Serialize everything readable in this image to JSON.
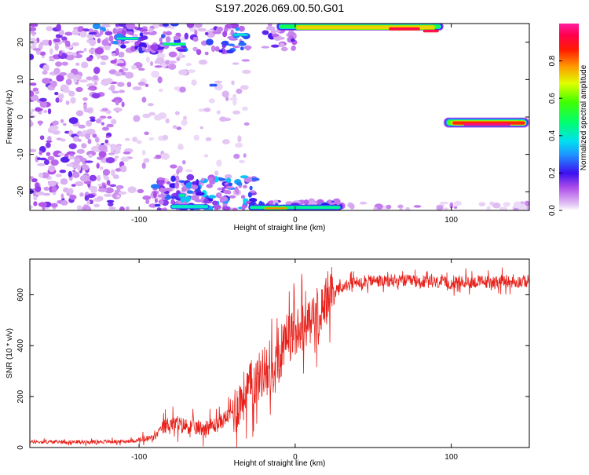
{
  "title": "S197.2026.069.00.50.G01",
  "colors": {
    "snr_line": "#e8201a",
    "axis": "#000000"
  },
  "chart_data": [
    {
      "type": "heatmap",
      "xlabel": "Height of straight line (km)",
      "ylabel": "Frequency (Hz)",
      "xlim": [
        -170,
        150
      ],
      "ylim": [
        -25,
        25
      ],
      "xticks": [
        {
          "value": -100,
          "label": "-100"
        },
        {
          "value": 0,
          "label": "0"
        },
        {
          "value": 100,
          "label": "100"
        }
      ],
      "yticks": [
        {
          "value": -20,
          "label": "-20"
        },
        {
          "value": -10,
          "label": "-10"
        },
        {
          "value": 0,
          "label": "0"
        },
        {
          "value": 10,
          "label": "10"
        },
        {
          "value": 20,
          "label": "20"
        }
      ],
      "colorbar": {
        "label": "Normalized spectral amplitude",
        "range": [
          0,
          1
        ],
        "ticks": [
          {
            "value": 0.0,
            "label": "0.0"
          },
          {
            "value": 0.2,
            "label": "0.2"
          },
          {
            "value": 0.4,
            "label": "0.4"
          },
          {
            "value": 0.6,
            "label": "0.6"
          },
          {
            "value": 0.8,
            "label": "0.8"
          }
        ]
      },
      "features": [
        {
          "x": [
            -170,
            -30
          ],
          "y": [
            -25,
            25
          ],
          "amplitude": 0.15
        },
        {
          "x": [
            -120,
            -20
          ],
          "y": [
            18,
            25
          ],
          "amplitude": 0.3
        },
        {
          "x": [
            -85,
            -25
          ],
          "y": [
            -25,
            -17
          ],
          "amplitude": 0.35
        },
        {
          "x": [
            -30,
            30
          ],
          "y": [
            -25,
            -23
          ],
          "amplitude": 0.4
        },
        {
          "x": [
            -10,
            95
          ],
          "y": [
            22,
            25
          ],
          "amplitude": 0.9
        },
        {
          "x": [
            95,
            148
          ],
          "y": [
            -3,
            0
          ],
          "amplitude": 0.9
        }
      ]
    },
    {
      "type": "line",
      "xlabel": "Height of straight line (km)",
      "ylabel": "SNR (10 * v/v)",
      "xlim": [
        -170,
        150
      ],
      "ylim": [
        0,
        740
      ],
      "xticks": [
        {
          "value": -100,
          "label": "-100"
        },
        {
          "value": 0,
          "label": "0"
        },
        {
          "value": 100,
          "label": "100"
        }
      ],
      "yticks": [
        {
          "value": 0,
          "label": "0"
        },
        {
          "value": 200,
          "label": "200"
        },
        {
          "value": 400,
          "label": "400"
        },
        {
          "value": 600,
          "label": "600"
        }
      ],
      "series": [
        {
          "x": [
            -170,
            -150,
            -130,
            -110,
            -100,
            -90,
            -85,
            -80,
            -70,
            -60,
            -50,
            -40,
            -30,
            -20,
            -15,
            -10,
            -5,
            0,
            5,
            10,
            15,
            20,
            25,
            30,
            40,
            50,
            60,
            70,
            80,
            90,
            100,
            110,
            120,
            130,
            140,
            150
          ],
          "values": [
            22,
            22,
            22,
            24,
            28,
            40,
            80,
            95,
            85,
            75,
            90,
            140,
            230,
            300,
            300,
            350,
            420,
            460,
            480,
            500,
            530,
            580,
            610,
            630,
            650,
            655,
            650,
            655,
            650,
            648,
            645,
            650,
            650,
            652,
            650,
            655
          ]
        }
      ]
    }
  ]
}
